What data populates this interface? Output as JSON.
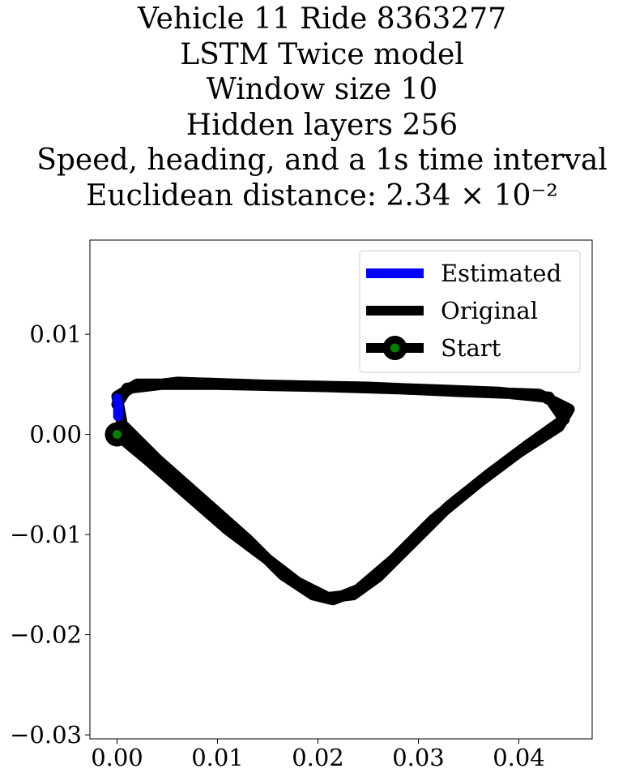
{
  "chart_data": {
    "type": "line",
    "title": "",
    "title_lines": [
      "Vehicle 11 Ride 8363277",
      "LSTM Twice model",
      "Window size 10",
      "Hidden layers 256",
      "Speed, heading, and a 1s time interval",
      "Euclidean distance: 2.34 × 10⁻²"
    ],
    "xlabel": "",
    "ylabel": "",
    "xlim": [
      -0.0027,
      0.0473
    ],
    "ylim": [
      -0.0304,
      0.0194
    ],
    "xticks": [
      0.0,
      0.01,
      0.02,
      0.03,
      0.04
    ],
    "xtick_labels": [
      "0.00",
      "0.01",
      "0.02",
      "0.03",
      "0.04"
    ],
    "yticks": [
      0.01,
      0.0,
      -0.01,
      -0.02,
      -0.03
    ],
    "ytick_labels": [
      "0.01",
      "0.00",
      "−0.01",
      "−0.02",
      "−0.03"
    ],
    "grid": false,
    "legend_position": "top-right",
    "series": [
      {
        "name": "Original",
        "color": "#000000",
        "style": "thick-line",
        "points": [
          [
            0.0,
            0.0
          ],
          [
            0.003,
            -0.0025
          ],
          [
            0.007,
            -0.006
          ],
          [
            0.011,
            -0.0095
          ],
          [
            0.015,
            -0.0125
          ],
          [
            0.018,
            -0.0148
          ],
          [
            0.021,
            -0.0163
          ],
          [
            0.0235,
            -0.016
          ],
          [
            0.026,
            -0.0142
          ],
          [
            0.029,
            -0.0112
          ],
          [
            0.033,
            -0.0072
          ],
          [
            0.037,
            -0.004
          ],
          [
            0.041,
            -0.001
          ],
          [
            0.0445,
            0.0015
          ],
          [
            0.043,
            0.0037
          ],
          [
            0.038,
            0.0042
          ],
          [
            0.03,
            0.0045
          ],
          [
            0.02,
            0.0048
          ],
          [
            0.01,
            0.005
          ],
          [
            0.002,
            0.005
          ],
          [
            0.0,
            0.0038
          ],
          [
            0.0005,
            0.001
          ],
          [
            0.004,
            -0.0025
          ],
          [
            0.0085,
            -0.0065
          ],
          [
            0.013,
            -0.0105
          ],
          [
            0.0165,
            -0.014
          ],
          [
            0.0195,
            -0.016
          ],
          [
            0.0215,
            -0.0165
          ],
          [
            0.024,
            -0.0155
          ],
          [
            0.0275,
            -0.0125
          ],
          [
            0.0315,
            -0.0085
          ],
          [
            0.036,
            -0.0048
          ],
          [
            0.04,
            -0.0018
          ],
          [
            0.044,
            0.0008
          ],
          [
            0.045,
            0.0025
          ],
          [
            0.042,
            0.004
          ],
          [
            0.034,
            0.0043
          ],
          [
            0.025,
            0.0047
          ],
          [
            0.015,
            0.0049
          ],
          [
            0.006,
            0.0052
          ],
          [
            0.001,
            0.0046
          ],
          [
            0.0,
            0.003
          ]
        ]
      },
      {
        "name": "Estimated",
        "color": "#0000ff",
        "style": "thick-line",
        "points": [
          [
            0.0,
            0.0036
          ],
          [
            0.0001,
            0.003
          ],
          [
            0.0001,
            0.0024
          ],
          [
            0.0001,
            0.0018
          ]
        ]
      }
    ],
    "start_point": {
      "name": "Start",
      "x": 0.0,
      "y": 0.0,
      "marker_color": "#000000",
      "inner_color": "#008000"
    },
    "legend": [
      "Estimated",
      "Original",
      "Start"
    ]
  }
}
